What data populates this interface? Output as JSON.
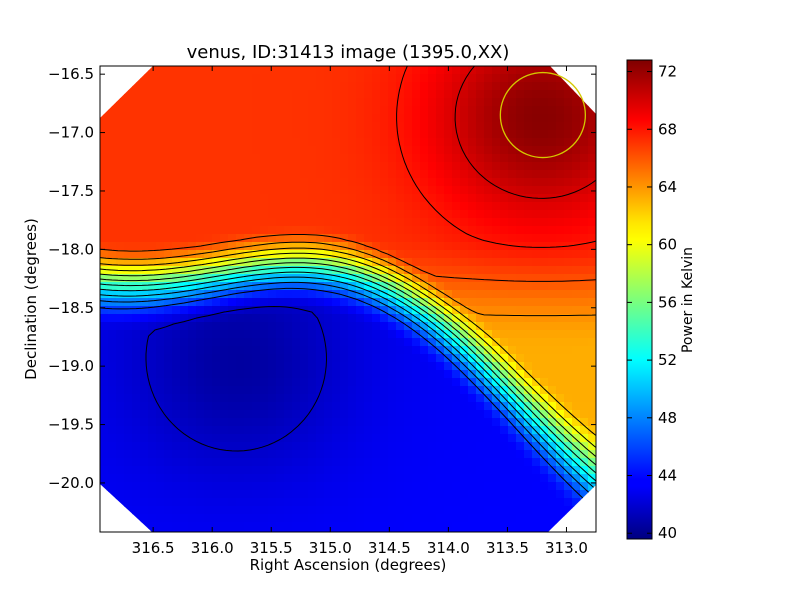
{
  "chart_data": {
    "type": "heatmap",
    "title": "venus, ID:31413 image (1395.0,XX)",
    "xlabel": "Right Ascension (degrees)",
    "ylabel": "Declination (degrees)",
    "xlim": [
      316.95,
      312.75
    ],
    "ylim": [
      -20.42,
      -16.43
    ],
    "x_reversed": true,
    "x_ticks": [
      316.5,
      316.0,
      315.5,
      315.0,
      314.5,
      314.0,
      313.5,
      313.0
    ],
    "x_tick_labels": [
      "316.5",
      "316.0",
      "315.5",
      "315.0",
      "314.5",
      "314.0",
      "313.5",
      "313.0"
    ],
    "y_ticks": [
      -16.5,
      -17.0,
      -17.5,
      -18.0,
      -18.5,
      -19.0,
      -19.5,
      -20.0
    ],
    "y_tick_labels": [
      "−16.5",
      "−17.0",
      "−17.5",
      "−18.0",
      "−18.5",
      "−19.0",
      "−19.5",
      "−20.0"
    ],
    "colorbar": {
      "label": "Power in Kelvin",
      "range": [
        39.6,
        72.8
      ],
      "ticks": [
        40,
        44,
        48,
        52,
        56,
        60,
        64,
        68,
        72
      ],
      "tick_labels": [
        "40",
        "44",
        "48",
        "52",
        "56",
        "60",
        "64",
        "68",
        "72"
      ],
      "colormap": "jet"
    },
    "contour_levels": [
      42,
      46,
      48,
      50,
      52,
      54,
      56,
      58,
      60,
      62,
      64,
      66,
      68,
      70
    ],
    "minimum": {
      "ra": 315.7,
      "dec": -18.95,
      "value": 40.5
    },
    "maximum": {
      "ra": 313.2,
      "dec": -16.85,
      "value": 72.5
    },
    "marker_circle": {
      "ra": 313.2,
      "dec": -16.85,
      "radius_deg": 0.36,
      "color": "#d4c800"
    },
    "grid": false
  }
}
